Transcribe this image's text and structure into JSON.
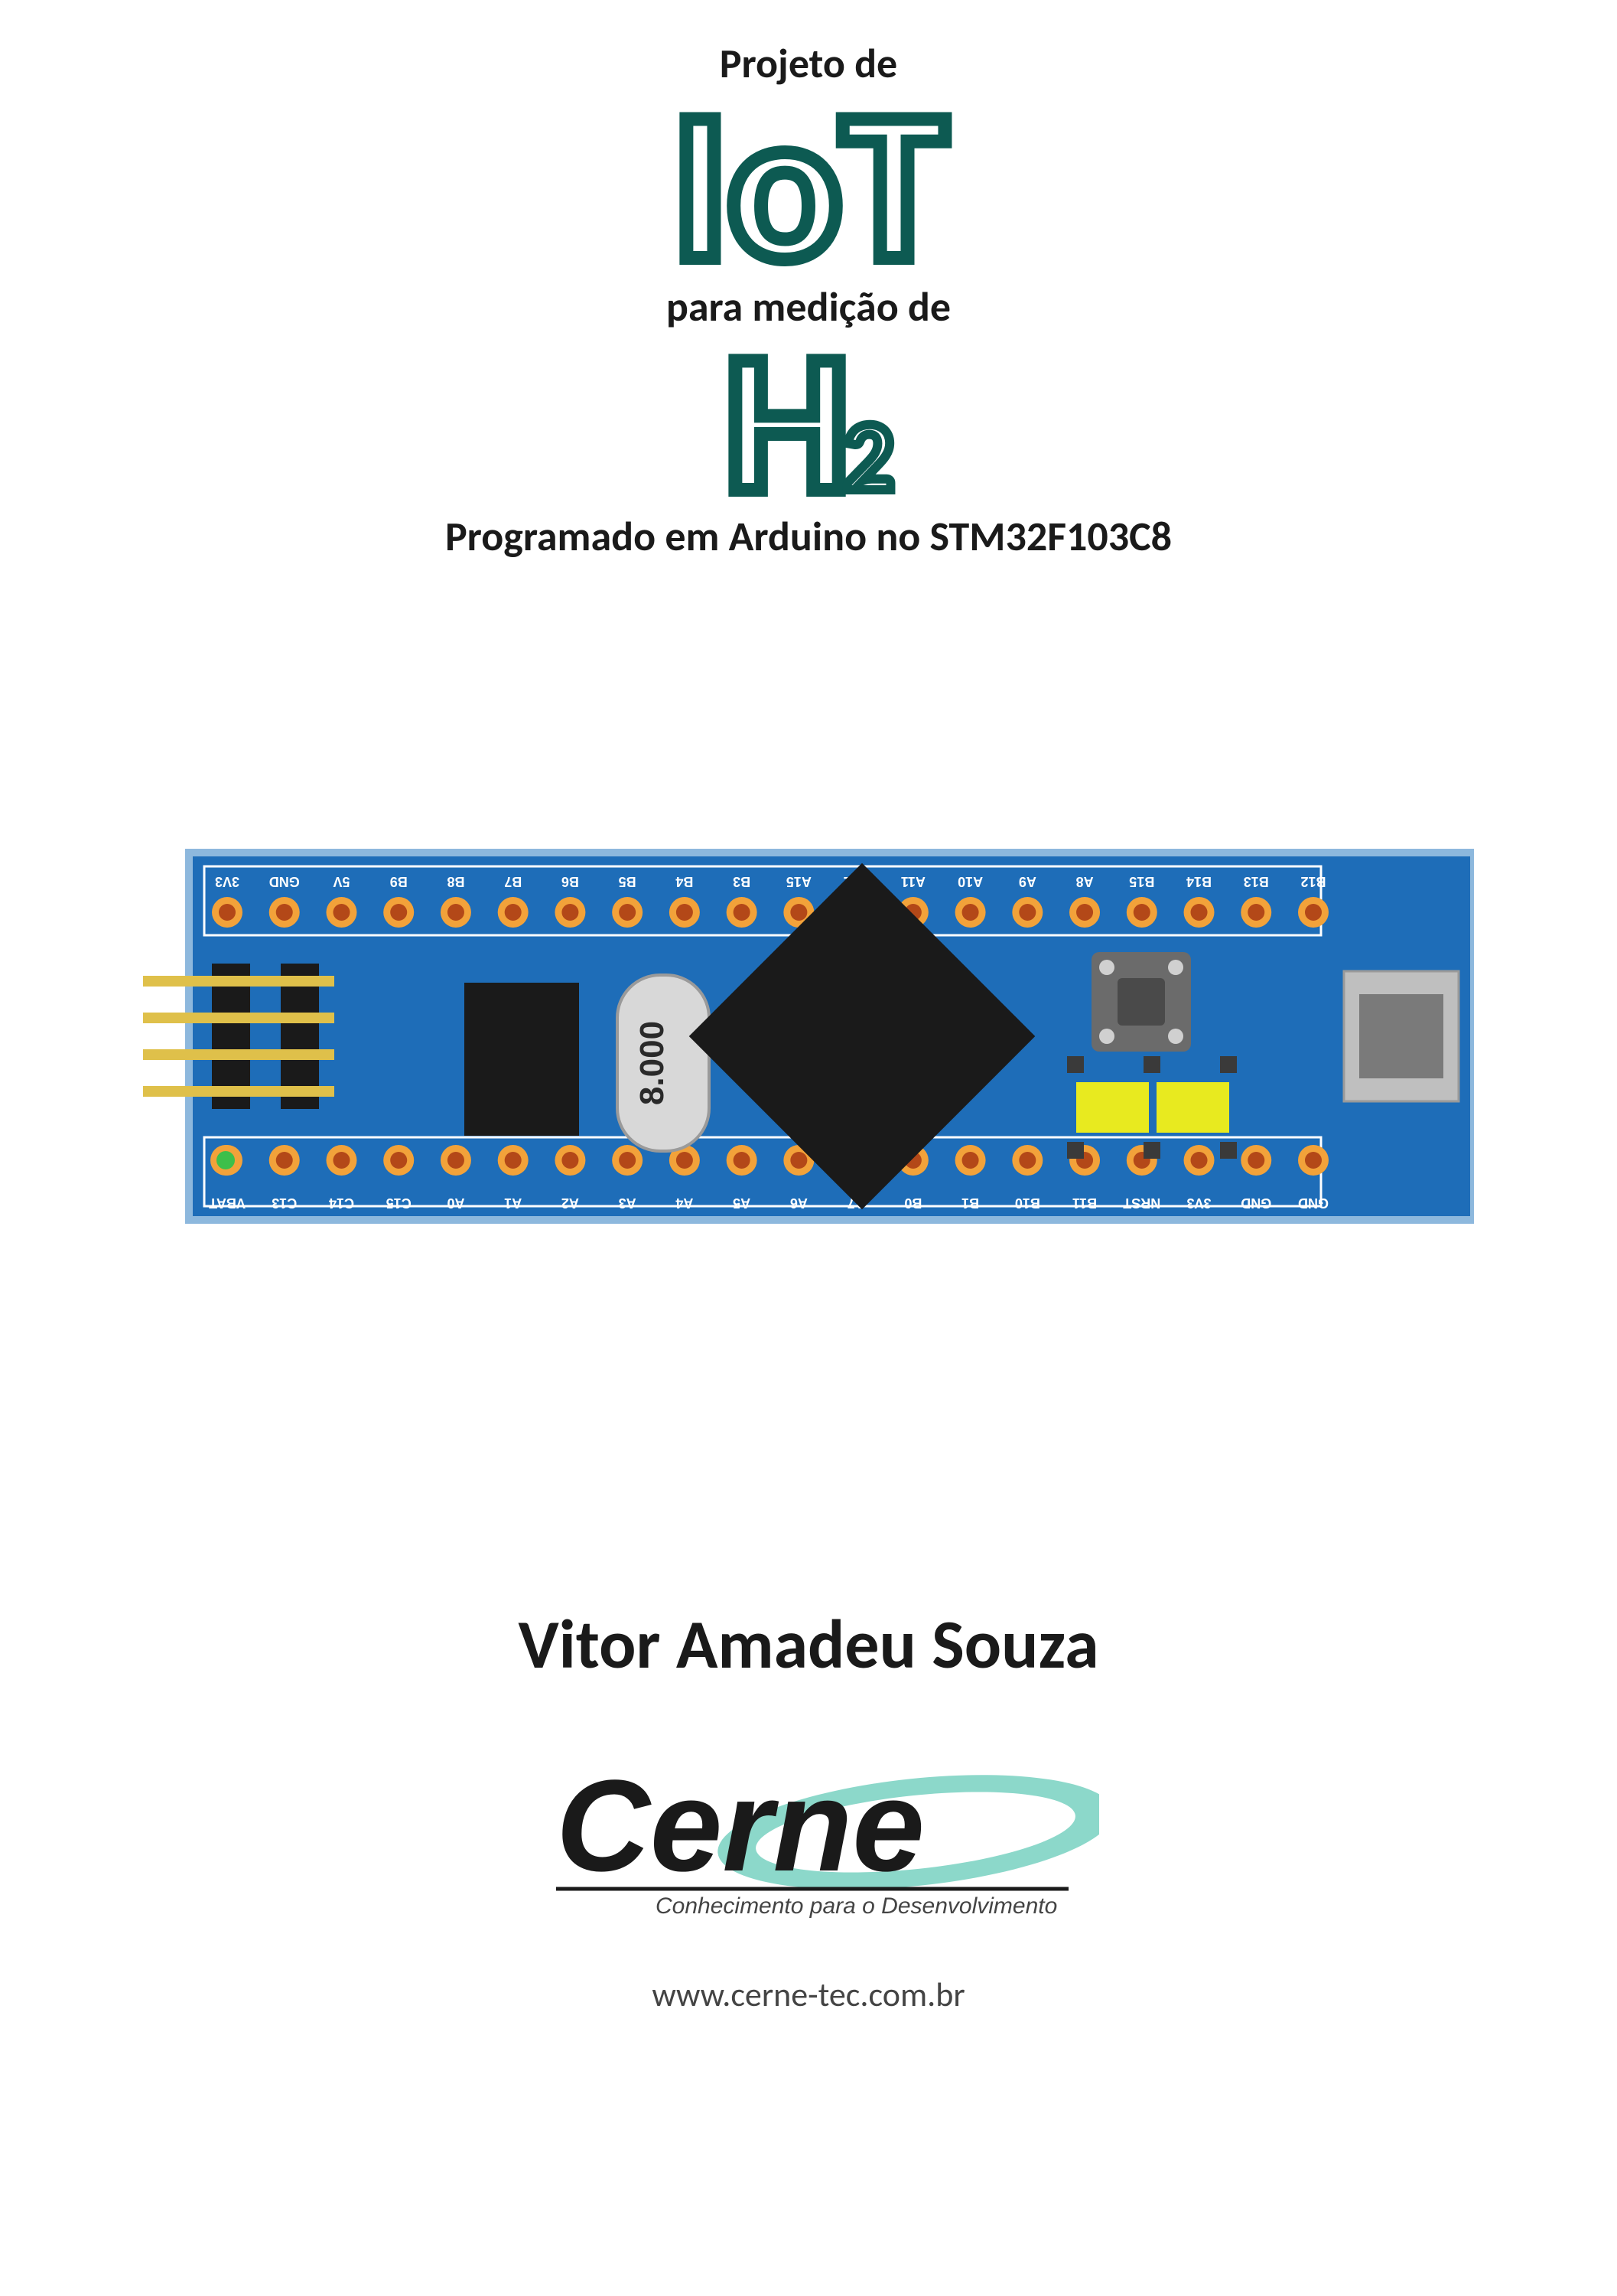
{
  "title": {
    "line1": "Projeto de",
    "iot": "IoT",
    "line2": "para medição de",
    "h2_main": "H",
    "h2_sub": "2",
    "line3": "Programado em Arduino no STM32F103C8",
    "line1_fontsize": 54,
    "line2_fontsize": 54,
    "line3_fontsize": 54,
    "iot_fontsize": 280,
    "h2_main_fontsize": 260,
    "h2_sub_fontsize": 130,
    "outline_color": "#0d5a52",
    "outline_width": 18,
    "text_color": "#1a1a1a"
  },
  "board": {
    "pcb_color": "#1e6db8",
    "pcb_border": "#8db8dd",
    "silkscreen": "#ffffff",
    "pin_hole_outer": "#f2a23a",
    "pin_hole_inner": "#b34818",
    "chip_color": "#1a1a1a",
    "crystal_body": "#d8d8d8",
    "crystal_text": "#2a2a2a",
    "crystal_label": "8.000",
    "header_pin_color": "#dfc04a",
    "header_plastic": "#1a1a1a",
    "button_body": "#6b6b6b",
    "button_top": "#4a4a4a",
    "jumper_color": "#e8ea1f",
    "jumper_pin": "#3a3a3a",
    "usb_shell": "#bfbfbf",
    "usb_inner": "#7a7a7a",
    "led_green": "#3dbf4a",
    "top_pins": [
      "3V3",
      "GND",
      "5V",
      "B9",
      "B8",
      "B7",
      "B6",
      "B5",
      "B4",
      "B3",
      "A15",
      "A12",
      "A11",
      "A10",
      "A9",
      "A8",
      "B15",
      "B14",
      "B13",
      "B12"
    ],
    "bottom_pins": [
      "VBAT",
      "C13",
      "C14",
      "C15",
      "A0",
      "A1",
      "A2",
      "A3",
      "A4",
      "A5",
      "A6",
      "A7",
      "B0",
      "B1",
      "B10",
      "B11",
      "NRST",
      "3V3",
      "GND",
      "GND"
    ],
    "pin_fontsize": 18
  },
  "author": {
    "name": "Vitor Amadeu Souza",
    "fontsize": 90
  },
  "publisher": {
    "logo_text": "Cerne",
    "logo_fontsize": 170,
    "swoosh_color": "#7fd4c4",
    "tagline": "Conhecimento para o Desenvolvimento",
    "tagline_fontsize": 30,
    "url": "www.cerne-tec.com.br",
    "url_fontsize": 44
  }
}
